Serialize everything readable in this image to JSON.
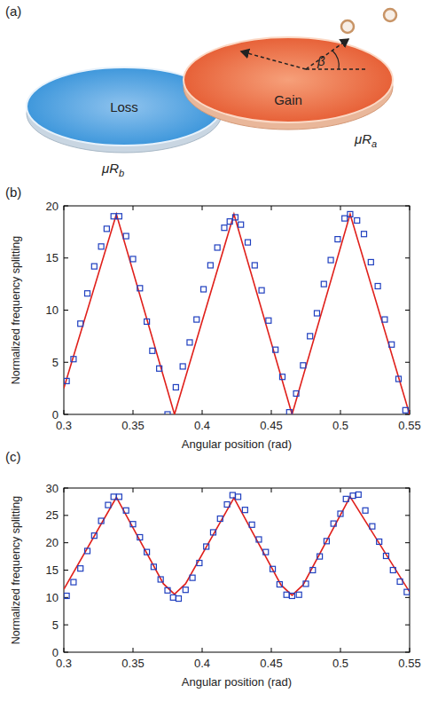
{
  "diagram": {
    "label": "(a)",
    "nodes": [
      {
        "label": "Loss"
      },
      {
        "label": "Gain"
      }
    ],
    "annotations": [
      {
        "text": "μR",
        "subscript": "b"
      },
      {
        "text": "μR",
        "subscript": "a"
      },
      {
        "text": "β"
      }
    ]
  },
  "chart_data": [
    {
      "type": "scatter",
      "title": "(b)",
      "x_label": "Angular position (rad)",
      "y_label": "Normalized frequency splitting",
      "xlim": [
        0.3,
        0.55
      ],
      "ylim": [
        0,
        20
      ],
      "xticks": [
        0.3,
        0.35,
        0.4,
        0.45,
        0.5,
        0.55
      ],
      "yticks": [
        0,
        5,
        10,
        15,
        20
      ],
      "series": [
        {
          "type": "line",
          "color": "#e0201b",
          "line_style": "solid",
          "x": [
            0.3,
            0.338,
            0.38,
            0.423,
            0.465,
            0.507,
            0.55
          ],
          "values": [
            2.5,
            19.2,
            0,
            19.2,
            0,
            19.2,
            0
          ]
        },
        {
          "type": "scatter",
          "color": "#1f3fbf",
          "marker": "square",
          "x": [
            0.302,
            0.307,
            0.312,
            0.317,
            0.322,
            0.327,
            0.331,
            0.336,
            0.34,
            0.345,
            0.35,
            0.355,
            0.36,
            0.364,
            0.369,
            0.375,
            0.381,
            0.386,
            0.391,
            0.396,
            0.401,
            0.406,
            0.411,
            0.416,
            0.42,
            0.424,
            0.428,
            0.433,
            0.438,
            0.443,
            0.448,
            0.453,
            0.458,
            0.463,
            0.468,
            0.473,
            0.478,
            0.483,
            0.488,
            0.493,
            0.498,
            0.503,
            0.507,
            0.512,
            0.517,
            0.522,
            0.527,
            0.532,
            0.537,
            0.542,
            0.547
          ],
          "values": [
            3.2,
            5.3,
            8.7,
            11.6,
            14.2,
            16.1,
            17.8,
            19.0,
            19.0,
            17.1,
            14.9,
            12.1,
            8.9,
            6.1,
            4.4,
            0.0,
            2.6,
            4.6,
            6.9,
            9.1,
            12.0,
            14.3,
            16.0,
            17.9,
            18.5,
            18.9,
            18.2,
            16.5,
            14.3,
            11.9,
            9.0,
            6.2,
            3.6,
            0.2,
            2.0,
            4.7,
            7.5,
            9.7,
            12.5,
            14.8,
            16.8,
            18.8,
            19.2,
            18.6,
            17.3,
            14.6,
            12.3,
            9.1,
            6.7,
            3.4,
            0.4
          ]
        }
      ]
    },
    {
      "type": "scatter",
      "title": "(c)",
      "x_label": "Angular position (rad)",
      "y_label": "Normalized frequency splitting",
      "xlim": [
        0.3,
        0.55
      ],
      "ylim": [
        0,
        30
      ],
      "xticks": [
        0.3,
        0.35,
        0.4,
        0.45,
        0.5,
        0.55
      ],
      "yticks": [
        0,
        5,
        10,
        15,
        20,
        25,
        30
      ],
      "series": [
        {
          "type": "line",
          "color": "#e0201b",
          "line_style": "solid",
          "x": [
            0.3,
            0.338,
            0.372,
            0.38,
            0.388,
            0.423,
            0.457,
            0.465,
            0.473,
            0.507,
            0.55
          ],
          "values": [
            11.5,
            28.3,
            12.5,
            10.6,
            12.5,
            28.2,
            12.3,
            10.4,
            12.3,
            28.4,
            11.0
          ]
        },
        {
          "type": "scatter",
          "color": "#1f3fbf",
          "marker": "square",
          "x": [
            0.302,
            0.307,
            0.312,
            0.317,
            0.322,
            0.327,
            0.332,
            0.336,
            0.34,
            0.345,
            0.35,
            0.355,
            0.36,
            0.365,
            0.37,
            0.375,
            0.379,
            0.383,
            0.388,
            0.393,
            0.398,
            0.403,
            0.408,
            0.413,
            0.418,
            0.422,
            0.426,
            0.431,
            0.436,
            0.441,
            0.446,
            0.451,
            0.456,
            0.461,
            0.465,
            0.47,
            0.475,
            0.48,
            0.485,
            0.49,
            0.495,
            0.5,
            0.504,
            0.509,
            0.513,
            0.518,
            0.523,
            0.528,
            0.533,
            0.538,
            0.543,
            0.548
          ],
          "values": [
            10.3,
            12.8,
            15.3,
            18.5,
            21.3,
            24.0,
            26.9,
            28.4,
            28.4,
            25.9,
            23.4,
            21.0,
            18.3,
            15.6,
            13.3,
            11.3,
            10.0,
            9.8,
            11.4,
            13.6,
            16.3,
            19.3,
            21.9,
            24.4,
            27.0,
            28.7,
            28.4,
            26.0,
            23.3,
            20.6,
            18.3,
            15.2,
            12.4,
            10.5,
            10.3,
            10.5,
            12.5,
            15.0,
            17.5,
            20.3,
            23.5,
            25.3,
            28.0,
            28.6,
            28.8,
            25.9,
            23.0,
            20.2,
            17.6,
            15.0,
            12.9,
            11.0
          ]
        }
      ]
    }
  ]
}
